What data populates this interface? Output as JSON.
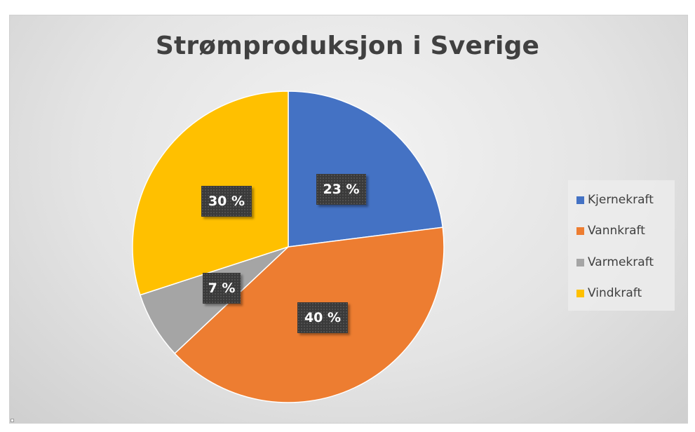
{
  "chart_data": {
    "type": "pie",
    "title": "Strømproduksjon i Sverige",
    "slices": [
      {
        "label": "Kjernekraft",
        "value": 23,
        "display": "23 %",
        "color": "#4472C4"
      },
      {
        "label": "Vannkraft",
        "value": 40,
        "display": "40 %",
        "color": "#ED7D31"
      },
      {
        "label": "Varmekraft",
        "value": 7,
        "display": "7 %",
        "color": "#A5A5A5"
      },
      {
        "label": "Vindkraft",
        "value": 30,
        "display": "30 %",
        "color": "#FFC000"
      }
    ],
    "legend": "right",
    "start": "12 o'clock",
    "direction": "clockwise"
  }
}
